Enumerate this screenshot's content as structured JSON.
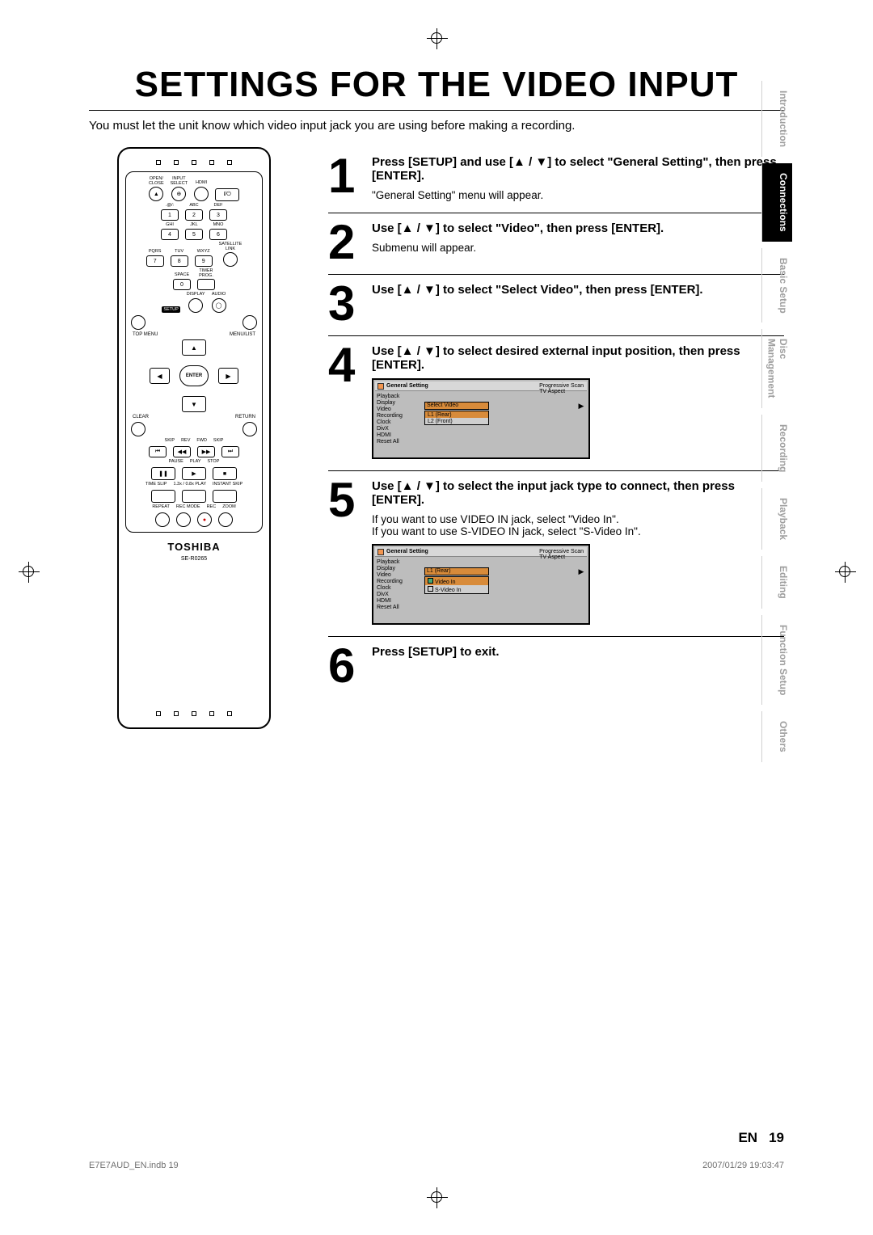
{
  "title": "SETTINGS FOR THE VIDEO INPUT",
  "intro": "You must let the unit know which video input jack you are using before making a recording.",
  "remote": {
    "brand": "TOSHIBA",
    "model": "SE-R0265",
    "nav_center": "ENTER",
    "top_labels_r1": [
      "OPEN/\nCLOSE",
      "INPUT\nSELECT",
      "HDMI",
      ""
    ],
    "top_labels_r2": [
      ".@/:",
      "ABC",
      "DEF"
    ],
    "top_labels_r3": [
      "GHI",
      "JKL",
      "MNO"
    ],
    "top_labels_r4": [
      "PQRS",
      "TUV",
      "WXYZ"
    ],
    "sat": "SATELLITE\nLINK",
    "space": "SPACE",
    "timer": "TIMER\nPROG.",
    "btns": [
      "1",
      "2",
      "3",
      "4",
      "5",
      "6",
      "7",
      "8",
      "9",
      "0"
    ],
    "row_setup": [
      "SETUP",
      "DISPLAY",
      "AUDIO"
    ],
    "topmenu": "TOP MENU",
    "menulist": "MENU/LIST",
    "clear": "CLEAR",
    "return": "RETURN",
    "transport1": [
      "SKIP",
      "REV",
      "FWD",
      "SKIP"
    ],
    "transport2": [
      "PAUSE",
      "PLAY",
      "STOP"
    ],
    "transport3": [
      "TIME SLIP",
      "1.3x / 0.8x PLAY",
      "INSTANT SKIP"
    ],
    "transport4": [
      "REPEAT",
      "REC MODE",
      "REC",
      "ZOOM"
    ]
  },
  "steps": [
    {
      "num": "1",
      "title": "Press [SETUP] and use [▲ / ▼] to select \"General Setting\", then press [ENTER].",
      "text": "\"General Setting\" menu will appear."
    },
    {
      "num": "2",
      "title": "Use [▲ / ▼] to select \"Video\", then press [ENTER].",
      "text": "Submenu will appear."
    },
    {
      "num": "3",
      "title": "Use [▲ / ▼] to select \"Select Video\", then press [ENTER].",
      "text": ""
    },
    {
      "num": "4",
      "title": "Use [▲ / ▼] to select desired external input position, then press [ENTER].",
      "text": "",
      "osd": {
        "header": "General Setting",
        "left": [
          "Playback",
          "Display",
          "Video",
          "Recording",
          "Clock",
          "DivX",
          "HDMI",
          "Reset All"
        ],
        "right": [
          "Progressive Scan",
          "TV Aspect"
        ],
        "highlight": "Select Video",
        "sub": [
          "L1 (Rear)",
          "L2 (Front)"
        ],
        "sub_sel": 0
      }
    },
    {
      "num": "5",
      "title": "Use [▲ / ▼] to select the input jack type to connect, then press [ENTER].",
      "text": "If you want to use VIDEO IN jack, select \"Video In\".\n If you want to use S-VIDEO IN jack, select \"S-Video In\".",
      "osd": {
        "header": "General Setting",
        "left": [
          "Playback",
          "Display",
          "Video",
          "Recording",
          "Clock",
          "DivX",
          "HDMI",
          "Reset All"
        ],
        "right": [
          "Progressive Scan",
          "TV Aspect"
        ],
        "highlight": "L1 (Rear)",
        "sub": [
          "Video In",
          "S-Video In"
        ],
        "sub_sel": 0,
        "checks": true
      }
    },
    {
      "num": "6",
      "title": "Press [SETUP] to exit.",
      "text": ""
    }
  ],
  "sidetabs": [
    {
      "label": "Introduction",
      "active": false
    },
    {
      "label": "Connections",
      "active": true
    },
    {
      "label": "Basic Setup",
      "active": false
    },
    {
      "label": "Disc\nManagement",
      "active": false,
      "split": true
    },
    {
      "label": "Recording",
      "active": false
    },
    {
      "label": "Playback",
      "active": false
    },
    {
      "label": "Editing",
      "active": false
    },
    {
      "label": "Function Setup",
      "active": false
    },
    {
      "label": "Others",
      "active": false
    }
  ],
  "page": {
    "lang": "EN",
    "num": "19"
  },
  "footer": {
    "left": "E7E7AUD_EN.indb   19",
    "right": "2007/01/29   19:03:47"
  }
}
